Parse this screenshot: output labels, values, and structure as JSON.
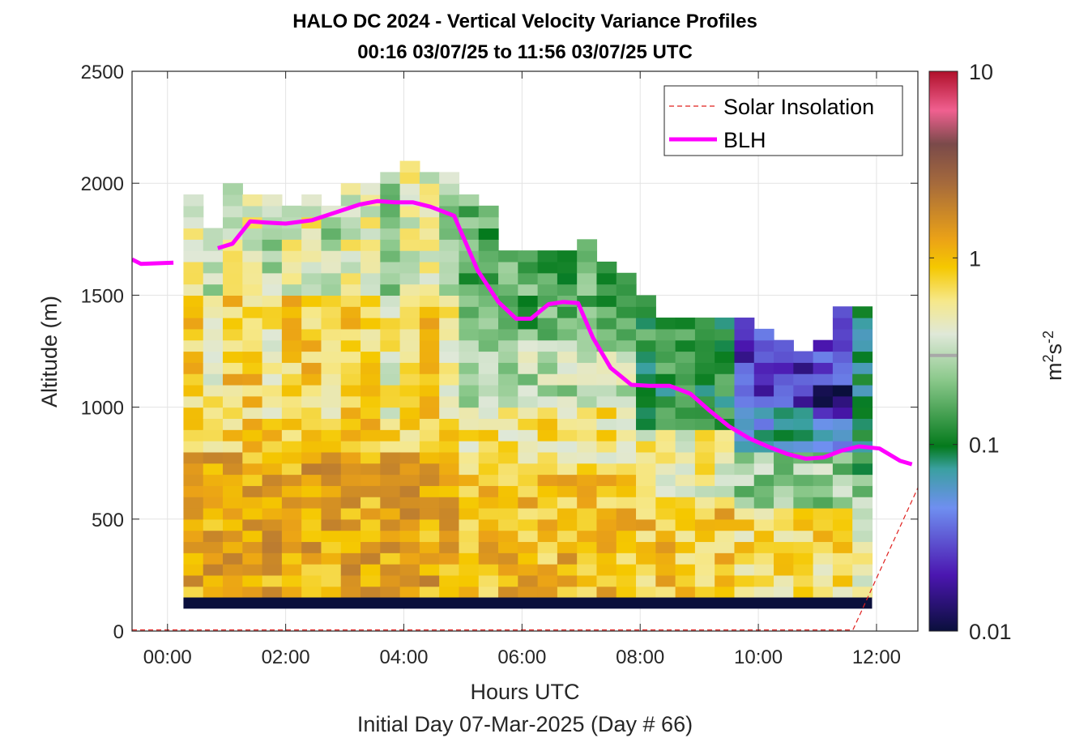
{
  "chart_data": {
    "type": "heatmap",
    "title": "HALO DC 2024 - Vertical Velocity Variance Profiles",
    "subtitle": "00:16 03/07/25 to 11:56 03/07/25  UTC",
    "xlabel": "Hours UTC",
    "xlabel2": "Initial Day 07-Mar-2025 (Day # 66)",
    "ylabel": "Altitude (m)",
    "xlim": [
      -0.6,
      12.7
    ],
    "ylim": [
      0,
      2500
    ],
    "x_ticks": [
      0,
      2,
      4,
      6,
      8,
      10,
      12
    ],
    "x_tick_labels": [
      "00:00",
      "02:00",
      "04:00",
      "06:00",
      "08:00",
      "10:00",
      "12:00"
    ],
    "y_ticks": [
      0,
      500,
      1000,
      1500,
      2000,
      2500
    ],
    "y_tick_labels": [
      "0",
      "500",
      "1000",
      "1500",
      "2000",
      "2500"
    ],
    "grid": true,
    "colorbar": {
      "scale": "log",
      "range": [
        0.01,
        10
      ],
      "tick_values": [
        0.01,
        0.1,
        1,
        10
      ],
      "tick_labels": [
        "0.01",
        "0.1",
        "1",
        "10"
      ],
      "marker_value": 0.3,
      "label_base": "m",
      "label_exp1": "2",
      "label_mid": "s",
      "label_exp2": "-2"
    },
    "legend": {
      "placement": "top-right",
      "entries": [
        {
          "label": "Solar Insolation",
          "color": "#e0201e",
          "style": "dashed"
        },
        {
          "label": "BLH",
          "color": "#ff00ff",
          "style": "solid"
        }
      ]
    },
    "heatmap_grid": {
      "x_start_hour": 0.27,
      "x_step_hour": 0.333,
      "altitude_bottom_m": 150,
      "altitude_step_m": 50,
      "value_unit": "m2 s-2",
      "profile_tops_m": [
        1930,
        1800,
        1980,
        1930,
        1930,
        1880,
        1930,
        1860,
        1980,
        1980,
        2030,
        2080,
        2030,
        2030,
        1940,
        1880,
        1690,
        1690,
        1690,
        1690,
        1740,
        1640,
        1590,
        1490,
        1390,
        1390,
        1390,
        1390,
        1390,
        1340,
        1290,
        1240,
        1290,
        1440,
        1440
      ],
      "bottom_layer_value": 0.01,
      "bottom_layer_m": [
        100,
        150
      ]
    },
    "series": [
      {
        "name": "BLH",
        "x": [
          -0.6,
          -0.45,
          0.1,
          0.3,
          0.5,
          0.85,
          1.1,
          1.4,
          1.65,
          2.0,
          2.45,
          2.85,
          3.25,
          3.55,
          3.85,
          4.15,
          4.45,
          4.85,
          5.25,
          5.6,
          5.9,
          6.15,
          6.45,
          6.7,
          6.95,
          7.2,
          7.5,
          7.85,
          8.15,
          8.5,
          8.85,
          9.15,
          9.5,
          9.85,
          10.2,
          10.5,
          10.8,
          11.1,
          11.4,
          11.7,
          12.05,
          12.4,
          12.6
        ],
        "y": [
          1660,
          1640,
          1645,
          null,
          null,
          1710,
          1730,
          1830,
          1825,
          1820,
          1835,
          1870,
          1905,
          1920,
          1915,
          1915,
          1895,
          1855,
          1610,
          1470,
          1395,
          1395,
          1460,
          1470,
          1465,
          1310,
          1175,
          1100,
          1095,
          1095,
          1060,
          990,
          915,
          860,
          820,
          790,
          770,
          775,
          805,
          825,
          815,
          760,
          745
        ]
      },
      {
        "name": "Solar Insolation",
        "x": [
          -0.6,
          11.6,
          12.7
        ],
        "y": [
          5,
          5,
          640
        ]
      }
    ]
  }
}
